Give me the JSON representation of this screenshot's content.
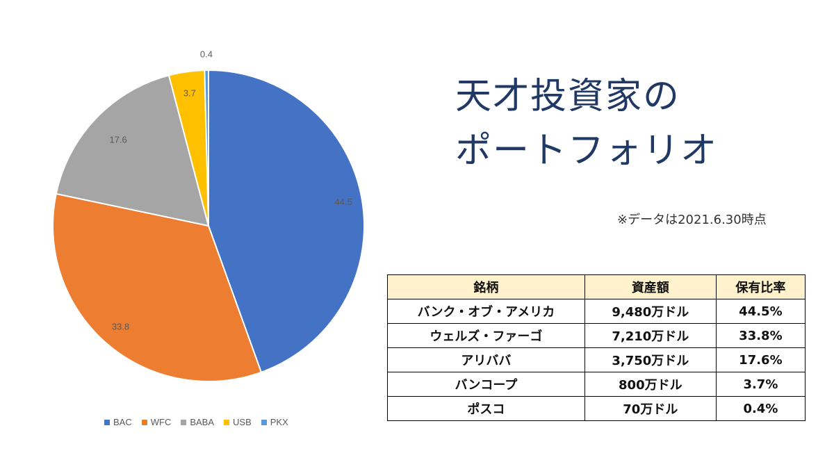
{
  "title": {
    "line1": "天才投資家の",
    "line2": "ポートフォリオ"
  },
  "note": "※データは2021.6.30時点",
  "chart_data": {
    "type": "pie",
    "categories": [
      "BAC",
      "WFC",
      "BABA",
      "USB",
      "PKX"
    ],
    "values": [
      44.5,
      33.8,
      17.6,
      3.7,
      0.4
    ],
    "labels": [
      "44.5",
      "33.8",
      "17.6",
      "3.7",
      "0.4"
    ],
    "colors": [
      "#4472c4",
      "#ed7d31",
      "#a5a5a5",
      "#ffc000",
      "#5b9bd5"
    ],
    "legend": "bottom",
    "start": "12 o'clock, clockwise"
  },
  "table": {
    "headers": [
      "銘柄",
      "資産額",
      "保有比率"
    ],
    "rows": [
      [
        "バンク・オブ・アメリカ",
        "9,480万ドル",
        "44.5%"
      ],
      [
        "ウェルズ・ファーゴ",
        "7,210万ドル",
        "33.8%"
      ],
      [
        "アリババ",
        "3,750万ドル",
        "17.6%"
      ],
      [
        "バンコープ",
        "800万ドル",
        "3.7%"
      ],
      [
        "ポスコ",
        "70万ドル",
        "0.4%"
      ]
    ],
    "header_bg": "#fff2cc"
  }
}
